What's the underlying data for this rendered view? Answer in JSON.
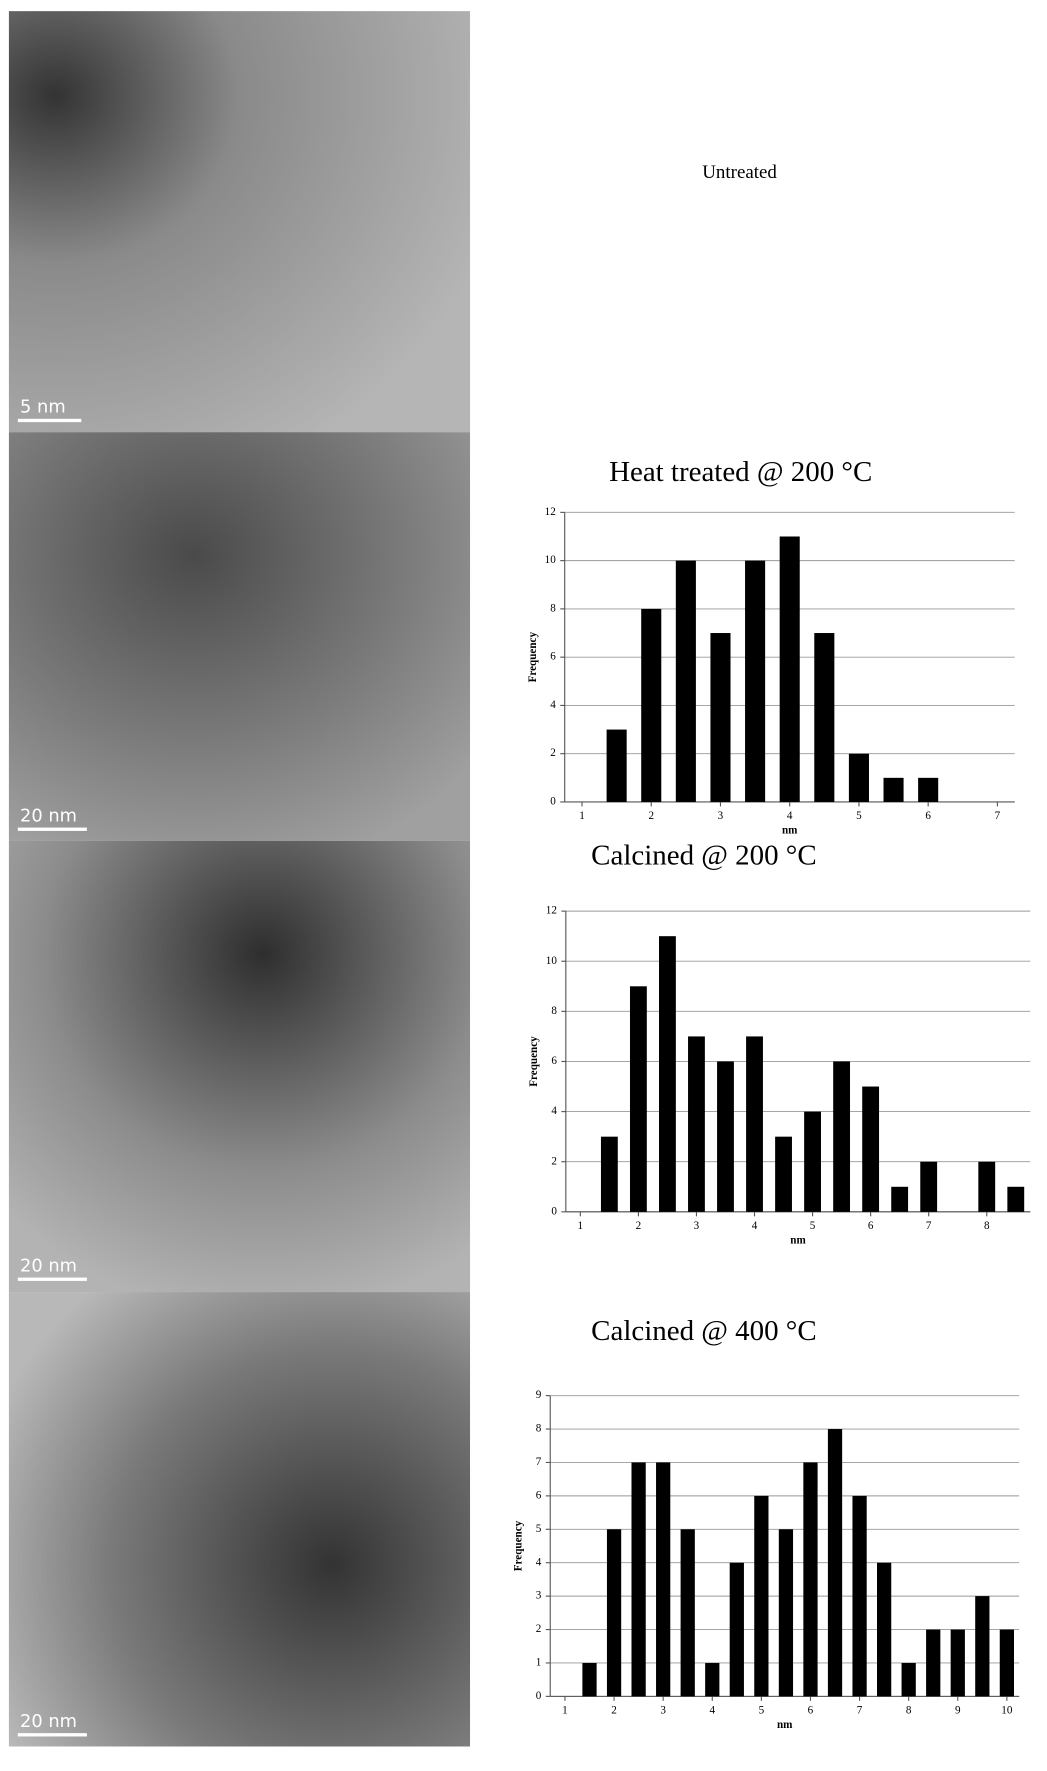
{
  "untreated_label": "Untreated",
  "images": [
    {
      "scale_bar": "5 nm"
    },
    {
      "scale_bar": "20 nm"
    },
    {
      "scale_bar": "20 nm"
    },
    {
      "scale_bar": "20 nm"
    }
  ],
  "chart_data": [
    {
      "type": "bar",
      "title": "Heat treated @ 200 °C",
      "x_label": "nm",
      "y_label": "Frequency",
      "x": [
        1.5,
        2,
        2.5,
        3,
        3.5,
        4,
        4.5,
        5,
        5.5,
        6
      ],
      "values": [
        3,
        8,
        10,
        7,
        10,
        11,
        7,
        2,
        1,
        1
      ],
      "color": "#000000",
      "xlim": [
        0.75,
        7.25
      ],
      "xticks": [
        1,
        2,
        3,
        4,
        5,
        6,
        7
      ],
      "ylim": [
        0,
        12
      ],
      "yticks": [
        0,
        2,
        4,
        6,
        8,
        10,
        12
      ],
      "grid": true
    },
    {
      "type": "bar",
      "title": "Calcined @ 200 °C",
      "x_label": "nm",
      "y_label": "Frequency",
      "x": [
        1.5,
        2,
        2.5,
        3,
        3.5,
        4,
        4.5,
        5,
        5.5,
        6,
        6.5,
        7,
        8,
        8.5
      ],
      "values": [
        3,
        9,
        11,
        7,
        6,
        7,
        3,
        4,
        6,
        5,
        1,
        2,
        2,
        1
      ],
      "color": "#000000",
      "xlim": [
        0.75,
        8.75
      ],
      "xticks": [
        1,
        2,
        3,
        4,
        5,
        6,
        7,
        8
      ],
      "ylim": [
        0,
        12
      ],
      "yticks": [
        0,
        2,
        4,
        6,
        8,
        10,
        12
      ],
      "grid": true
    },
    {
      "type": "bar",
      "title": "Calcined @ 400 °C",
      "x_label": "nm",
      "y_label": "Frequency",
      "x": [
        1.5,
        2,
        2.5,
        3,
        3.5,
        4,
        4.5,
        5,
        5.5,
        6,
        6.5,
        7,
        7.5,
        8,
        8.5,
        9,
        9.5,
        10
      ],
      "values": [
        1,
        5,
        7,
        7,
        5,
        1,
        4,
        6,
        5,
        7,
        8,
        6,
        4,
        1,
        2,
        2,
        3,
        2
      ],
      "color": "#000000",
      "xlim": [
        0.7,
        10.25
      ],
      "xticks": [
        1,
        2,
        3,
        4,
        5,
        6,
        7,
        8,
        9,
        10
      ],
      "ylim": [
        0,
        9
      ],
      "yticks": [
        0,
        1,
        2,
        3,
        4,
        5,
        6,
        7,
        8,
        9
      ],
      "grid": true
    }
  ]
}
